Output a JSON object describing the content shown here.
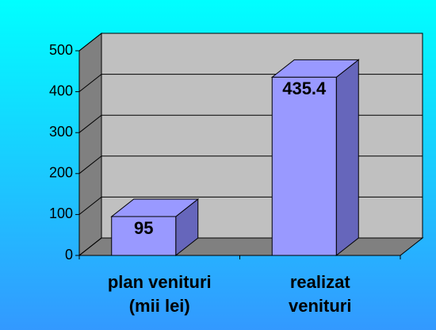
{
  "chart_data": {
    "type": "bar3d",
    "categories": [
      [
        "plan venituri",
        "(mii lei)"
      ],
      [
        "realizat",
        "venituri"
      ]
    ],
    "values": [
      95,
      435.4
    ],
    "color": "#9999ff",
    "ylim": [
      0,
      500
    ],
    "yticks": [
      0,
      100,
      200,
      300,
      400,
      500
    ],
    "grid": true
  }
}
